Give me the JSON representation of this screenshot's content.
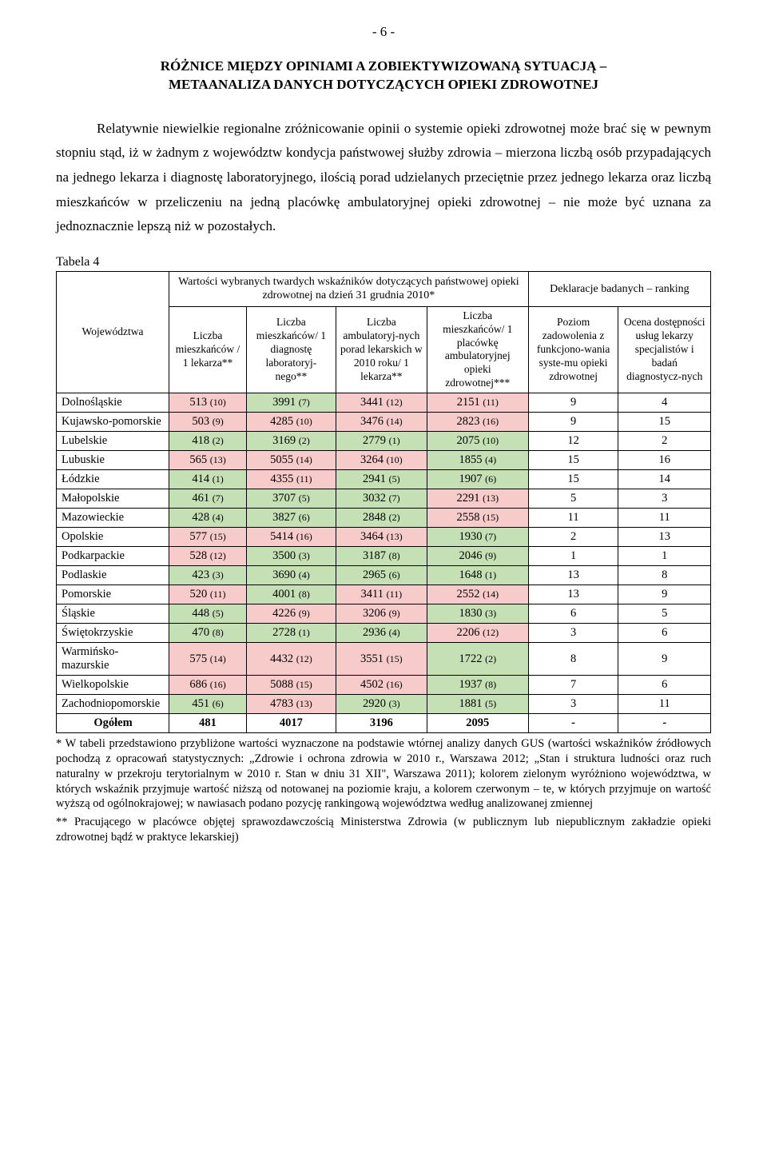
{
  "pageNum": "- 6 -",
  "heading": {
    "l1": "RÓŻNICE MIĘDZY OPINIAMI A ZOBIEKTYWIZOWANĄ SYTUACJĄ –",
    "l2": "METAANALIZA DANYCH DOTYCZĄCYCH OPIEKI  ZDROWOTNEJ"
  },
  "bodyText": "Relatywnie niewielkie regionalne zróżnicowanie opinii o systemie opieki zdrowotnej może brać się w pewnym stopniu stąd, iż w żadnym z województw kondycja państwowej służby zdrowia – mierzona liczbą osób przypadających na jednego lekarza i diagnostę laboratoryjnego, ilością porad udzielanych przeciętnie przez jednego lekarza oraz liczbą mieszkańców w przeliczeniu na jedną placówkę ambulatoryjnej opieki zdrowotnej – nie  może być uznana za jednoznacznie lepszą niż w pozostałych.",
  "tableLabel": "Tabela 4",
  "colors": {
    "green": "#c5e0b4",
    "red": "#f8cbcb",
    "border": "#000",
    "text": "#000",
    "bg": "#fff"
  },
  "headers": {
    "c0": "Województwa",
    "top1": "Wartości wybranych twardych wskaźników dotyczących państwowej opieki zdrowotnej na dzień 31 grudnia 2010*",
    "top2": "Deklaracje badanych – ranking",
    "c1": "Liczba mieszkańców / 1 lekarza**",
    "c2": "Liczba mieszkańców/ 1 diagnostę laboratoryj-nego**",
    "c3": "Liczba ambulatoryj-nych porad lekarskich w 2010 roku/ 1 lekarza**",
    "c4": "Liczba mieszkańców/ 1 placówkę ambulatoryjnej opieki zdrowotnej***",
    "c5": "Poziom zadowolenia z funkcjono-wania syste-mu opieki zdrowotnej",
    "c6": "Ocena dostępności usług lekarzy specjalistów i badań diagnostycz-nych"
  },
  "rows": [
    {
      "r": "Dolnośląskie",
      "v": [
        [
          "513",
          "(10)",
          "r"
        ],
        [
          "3991",
          "(7)",
          "g"
        ],
        [
          "3441",
          "(12)",
          "r"
        ],
        [
          "2151",
          "(11)",
          "r"
        ],
        [
          "9",
          ""
        ],
        [
          "4",
          ""
        ]
      ]
    },
    {
      "r": "Kujawsko-pomorskie",
      "v": [
        [
          "503",
          "(9)",
          "r"
        ],
        [
          "4285",
          "(10)",
          "r"
        ],
        [
          "3476",
          "(14)",
          "r"
        ],
        [
          "2823",
          "(16)",
          "r"
        ],
        [
          "9",
          ""
        ],
        [
          "15",
          ""
        ]
      ]
    },
    {
      "r": "Lubelskie",
      "v": [
        [
          "418",
          "(2)",
          "g"
        ],
        [
          "3169",
          "(2)",
          "g"
        ],
        [
          "2779",
          "(1)",
          "g"
        ],
        [
          "2075",
          "(10)",
          "g"
        ],
        [
          "12",
          ""
        ],
        [
          "2",
          ""
        ]
      ]
    },
    {
      "r": "Lubuskie",
      "v": [
        [
          "565",
          "(13)",
          "r"
        ],
        [
          "5055",
          "(14)",
          "r"
        ],
        [
          "3264",
          "(10)",
          "r"
        ],
        [
          "1855",
          "(4)",
          "g"
        ],
        [
          "15",
          ""
        ],
        [
          "16",
          ""
        ]
      ]
    },
    {
      "r": "Łódzkie",
      "v": [
        [
          "414",
          "(1)",
          "g"
        ],
        [
          "4355",
          "(11)",
          "r"
        ],
        [
          "2941",
          "(5)",
          "g"
        ],
        [
          "1907",
          "(6)",
          "g"
        ],
        [
          "15",
          ""
        ],
        [
          "14",
          ""
        ]
      ]
    },
    {
      "r": "Małopolskie",
      "v": [
        [
          "461",
          "(7)",
          "g"
        ],
        [
          "3707",
          "(5)",
          "g"
        ],
        [
          "3032",
          "(7)",
          "g"
        ],
        [
          "2291",
          "(13)",
          "r"
        ],
        [
          "5",
          ""
        ],
        [
          "3",
          ""
        ]
      ]
    },
    {
      "r": "Mazowieckie",
      "v": [
        [
          "428",
          "(4)",
          "g"
        ],
        [
          "3827",
          "(6)",
          "g"
        ],
        [
          "2848",
          "(2)",
          "g"
        ],
        [
          "2558",
          "(15)",
          "r"
        ],
        [
          "11",
          ""
        ],
        [
          "11",
          ""
        ]
      ]
    },
    {
      "r": "Opolskie",
      "v": [
        [
          "577",
          "(15)",
          "r"
        ],
        [
          "5414",
          "(16)",
          "r"
        ],
        [
          "3464",
          "(13)",
          "r"
        ],
        [
          "1930",
          "(7)",
          "g"
        ],
        [
          "2",
          ""
        ],
        [
          "13",
          ""
        ]
      ]
    },
    {
      "r": "Podkarpackie",
      "v": [
        [
          "528",
          "(12)",
          "r"
        ],
        [
          "3500",
          "(3)",
          "g"
        ],
        [
          "3187",
          "(8)",
          "g"
        ],
        [
          "2046",
          "(9)",
          "g"
        ],
        [
          "1",
          ""
        ],
        [
          "1",
          ""
        ]
      ]
    },
    {
      "r": "Podlaskie",
      "v": [
        [
          "423",
          "(3)",
          "g"
        ],
        [
          "3690",
          "(4)",
          "g"
        ],
        [
          "2965",
          "(6)",
          "g"
        ],
        [
          "1648",
          "(1)",
          "g"
        ],
        [
          "13",
          ""
        ],
        [
          "8",
          ""
        ]
      ]
    },
    {
      "r": "Pomorskie",
      "v": [
        [
          "520",
          "(11)",
          "r"
        ],
        [
          "4001",
          "(8)",
          "g"
        ],
        [
          "3411",
          "(11)",
          "r"
        ],
        [
          "2552",
          "(14)",
          "r"
        ],
        [
          "13",
          ""
        ],
        [
          "9",
          ""
        ]
      ]
    },
    {
      "r": "Śląskie",
      "v": [
        [
          "448",
          "(5)",
          "g"
        ],
        [
          "4226",
          "(9)",
          "r"
        ],
        [
          "3206",
          "(9)",
          "r"
        ],
        [
          "1830",
          "(3)",
          "g"
        ],
        [
          "6",
          ""
        ],
        [
          "5",
          ""
        ]
      ]
    },
    {
      "r": "Świętokrzyskie",
      "v": [
        [
          "470",
          "(8)",
          "g"
        ],
        [
          "2728",
          "(1)",
          "g"
        ],
        [
          "2936",
          "(4)",
          "g"
        ],
        [
          "2206",
          "(12)",
          "r"
        ],
        [
          "3",
          ""
        ],
        [
          "6",
          ""
        ]
      ]
    },
    {
      "r": "Warmińsko-mazurskie",
      "v": [
        [
          "575",
          "(14)",
          "r"
        ],
        [
          "4432",
          "(12)",
          "r"
        ],
        [
          "3551",
          "(15)",
          "r"
        ],
        [
          "1722",
          "(2)",
          "g"
        ],
        [
          "8",
          ""
        ],
        [
          "9",
          ""
        ]
      ]
    },
    {
      "r": "Wielkopolskie",
      "v": [
        [
          "686",
          "(16)",
          "r"
        ],
        [
          "5088",
          "(15)",
          "r"
        ],
        [
          "4502",
          "(16)",
          "r"
        ],
        [
          "1937",
          "(8)",
          "g"
        ],
        [
          "7",
          ""
        ],
        [
          "6",
          ""
        ]
      ]
    },
    {
      "r": "Zachodniopomorskie",
      "v": [
        [
          "451",
          "(6)",
          "g"
        ],
        [
          "4783",
          "(13)",
          "r"
        ],
        [
          "2920",
          "(3)",
          "g"
        ],
        [
          "1881",
          "(5)",
          "g"
        ],
        [
          "3",
          ""
        ],
        [
          "11",
          ""
        ]
      ]
    }
  ],
  "total": {
    "label": "Ogółem",
    "v": [
      "481",
      "4017",
      "3196",
      "2095",
      "-",
      "-"
    ]
  },
  "footnotes": {
    "n1": "* W tabeli przedstawiono przybliżone wartości wyznaczone na podstawie wtórnej analizy danych GUS (wartości wskaźników źródłowych pochodzą z opracowań statystycznych: „Zdrowie i ochrona zdrowia w 2010 r., Warszawa 2012; „Stan i struktura ludności oraz ruch naturalny w przekroju terytorialnym w 2010 r. Stan w dniu 31 XII\", Warszawa 2011); kolorem zielonym wyróżniono województwa, w których wskaźnik przyjmuje wartość niższą od  notowanej na poziomie kraju, a kolorem czerwonym – te, w których przyjmuje on wartość wyższą od ogólnokrajowej; w nawiasach podano pozycję rankingową województwa według analizowanej zmiennej",
    "n2": "** Pracującego w placówce objętej sprawozdawczością Ministerstwa Zdrowia (w publicznym lub niepublicznym zakładzie opieki zdrowotnej bądź w praktyce lekarskiej)"
  }
}
